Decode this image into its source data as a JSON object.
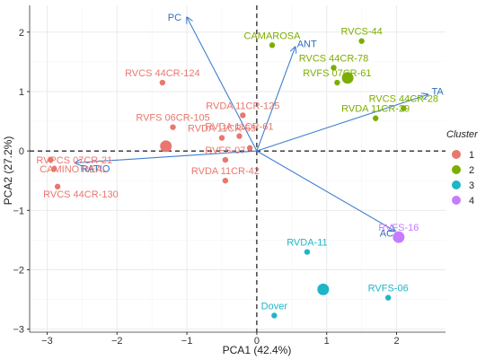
{
  "chart_data": {
    "type": "scatter",
    "title": "",
    "xlabel": "PCA1 (42.4%)",
    "ylabel": "PCA2 (27.2%)",
    "xlim": [
      -3.25,
      2.7
    ],
    "ylim": [
      -3.05,
      2.45
    ],
    "x_ticks": [
      -3,
      -2,
      -1,
      0,
      1,
      2
    ],
    "y_ticks": [
      -3,
      -2,
      -1,
      0,
      1,
      2
    ],
    "grid": true,
    "reference_lines": {
      "x": 0,
      "y": 0,
      "style": "dashed"
    },
    "legend": {
      "title": "Cluster",
      "position": "right",
      "items": [
        {
          "label": "1",
          "color": "#E8776F"
        },
        {
          "label": "2",
          "color": "#7CAE00"
        },
        {
          "label": "3",
          "color": "#1FB5C7"
        },
        {
          "label": "4",
          "color": "#C77CFF"
        }
      ]
    },
    "colors": {
      "1": "#E8776F",
      "2": "#7CAE00",
      "3": "#1FB5C7",
      "4": "#C77CFF",
      "arrow": "#3F7FD0"
    },
    "points": [
      {
        "label": "RVCS 44CR-124",
        "x": -1.35,
        "y": 1.15,
        "cluster": "1"
      },
      {
        "label": "RVFS 06CR-105",
        "x": -1.2,
        "y": 0.4,
        "cluster": "1"
      },
      {
        "label": "RVPCS 07CR-21",
        "x": -2.95,
        "y": -0.15,
        "cluster": "1"
      },
      {
        "label": "CAMINO REAL",
        "x": -2.9,
        "y": -0.3,
        "cluster": "1"
      },
      {
        "label": "RVCS 44CR-130",
        "x": -2.85,
        "y": -0.6,
        "cluster": "1"
      },
      {
        "label": "RVDA 11CR-125",
        "x": -0.2,
        "y": 0.6,
        "cluster": "1"
      },
      {
        "label": "RVDA 11CR-61",
        "x": -0.25,
        "y": 0.25,
        "cluster": "1"
      },
      {
        "label": "RVDA 11CR-65",
        "x": -0.5,
        "y": 0.22,
        "cluster": "1"
      },
      {
        "label": "RVFS-07",
        "x": -0.45,
        "y": -0.15,
        "cluster": "1"
      },
      {
        "label": "RVDA 11CR-42",
        "x": -0.45,
        "y": -0.5,
        "cluster": "1"
      },
      {
        "label": "",
        "x": -0.1,
        "y": 0.05,
        "cluster": "1"
      },
      {
        "label": "CAMAROSA",
        "x": 0.22,
        "y": 1.78,
        "cluster": "2"
      },
      {
        "label": "RVCS-44",
        "x": 1.5,
        "y": 1.85,
        "cluster": "2"
      },
      {
        "label": "RVCS 44CR-78",
        "x": 1.1,
        "y": 1.4,
        "cluster": "2"
      },
      {
        "label": "RVFS 07CR-61",
        "x": 1.15,
        "y": 1.15,
        "cluster": "2"
      },
      {
        "label": "RVCS 44CR-28",
        "x": 2.1,
        "y": 0.72,
        "cluster": "2"
      },
      {
        "label": "RVDA 11CR-29",
        "x": 1.7,
        "y": 0.55,
        "cluster": "2"
      },
      {
        "label": "RVDA-11",
        "x": 0.72,
        "y": -1.7,
        "cluster": "3"
      },
      {
        "label": "RVFS-06",
        "x": 1.88,
        "y": -2.47,
        "cluster": "3"
      },
      {
        "label": "Dover",
        "x": 0.25,
        "y": -2.77,
        "cluster": "3"
      },
      {
        "label": "RVFS-16",
        "x": 2.03,
        "y": -1.45,
        "cluster": "4"
      }
    ],
    "centroids": [
      {
        "cluster": "1",
        "x": -1.3,
        "y": 0.08
      },
      {
        "cluster": "2",
        "x": 1.3,
        "y": 1.23
      },
      {
        "cluster": "3",
        "x": 0.95,
        "y": -2.33
      },
      {
        "cluster": "4",
        "x": 2.03,
        "y": -1.45
      }
    ],
    "loadings": [
      {
        "label": "PC",
        "x": -1.0,
        "y": 2.25
      },
      {
        "label": "ANT",
        "x": 0.55,
        "y": 1.75
      },
      {
        "label": "TA",
        "x": 2.45,
        "y": 0.95
      },
      {
        "label": "AC",
        "x": 1.98,
        "y": -1.35
      },
      {
        "label": "RATIO",
        "x": -2.6,
        "y": -0.2
      }
    ]
  }
}
